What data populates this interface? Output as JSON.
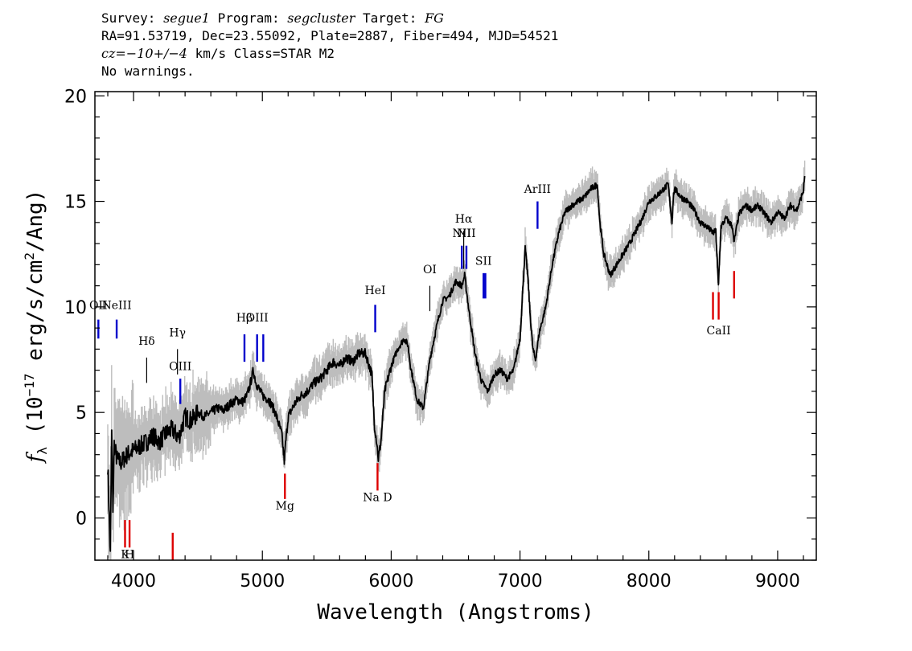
{
  "header": {
    "survey_label": "Survey:",
    "survey": "segue1",
    "program_label": "Program:",
    "program": "segcluster",
    "target_label": "Target:",
    "target": "FG",
    "line2": "RA=91.53719, Dec=23.55092, Plate=2887, Fiber=494, MJD=54521",
    "cz_label": "cz=",
    "cz_value": "−10+/−4",
    "cz_rest": " km/s Class=STAR M2",
    "line4": "No warnings."
  },
  "chart_data": {
    "type": "line",
    "xlabel": "Wavelength (Angstroms)",
    "ylabel_parts": {
      "f": "f",
      "sub": "λ",
      "pre": " (10",
      "exp1": "−17",
      "mid": " erg/s/cm",
      "exp2": "2",
      "post": "/Ang)"
    },
    "xlim": [
      3700,
      9300
    ],
    "ylim": [
      -2,
      20.2
    ],
    "xticks": [
      4000,
      5000,
      6000,
      7000,
      8000,
      9000
    ],
    "yticks": [
      0,
      5,
      10,
      15,
      20
    ],
    "grid": false,
    "colors": {
      "flux": "#000000",
      "error": "#bdbdbd",
      "emission": "#0000cc",
      "absorption": "#dd0000",
      "galaxy": "#000000"
    },
    "series": [
      {
        "x": [
          3800,
          3820,
          3830,
          3840,
          3850,
          3870,
          3900,
          3950,
          4000,
          4050,
          4100,
          4150,
          4200,
          4250,
          4300,
          4350,
          4400,
          4450,
          4500,
          4550,
          4600,
          4650,
          4700,
          4750,
          4800,
          4850,
          4880,
          4900,
          4930,
          4950,
          5000,
          5050,
          5100,
          5150,
          5170,
          5180,
          5200,
          5250,
          5300,
          5350,
          5400,
          5450,
          5500,
          5550,
          5600,
          5650,
          5700,
          5750,
          5800,
          5850,
          5870,
          5890,
          5900,
          5920,
          5950,
          6000,
          6050,
          6100,
          6130,
          6150,
          6200,
          6250,
          6300,
          6350,
          6400,
          6450,
          6500,
          6550,
          6570,
          6600,
          6650,
          6700,
          6730,
          6750,
          6800,
          6850,
          6900,
          6950,
          7000,
          7040,
          7060,
          7080,
          7100,
          7120,
          7150,
          7200,
          7250,
          7300,
          7350,
          7400,
          7450,
          7500,
          7550,
          7600,
          7620,
          7650,
          7700,
          7750,
          7800,
          7850,
          7900,
          7950,
          8000,
          8050,
          8100,
          8150,
          8180,
          8190,
          8200,
          8250,
          8300,
          8350,
          8400,
          8450,
          8500,
          8520,
          8540,
          8560,
          8600,
          8650,
          8660,
          8700,
          8750,
          8800,
          8850,
          8900,
          8950,
          9000,
          9050,
          9100,
          9150,
          9200,
          9210
        ],
        "y": [
          2.5,
          -1.8,
          4.0,
          0.5,
          3.5,
          2.8,
          2.6,
          3.0,
          3.2,
          3.4,
          3.6,
          3.9,
          3.6,
          4.0,
          4.2,
          3.8,
          4.8,
          4.6,
          5.0,
          4.8,
          5.0,
          5.2,
          5.1,
          5.4,
          5.6,
          5.5,
          5.8,
          6.2,
          7.0,
          6.4,
          5.8,
          5.6,
          5.0,
          4.0,
          2.7,
          3.5,
          4.8,
          5.4,
          5.8,
          6.0,
          6.4,
          6.6,
          7.0,
          7.4,
          7.2,
          7.6,
          7.4,
          7.8,
          7.8,
          6.8,
          4.4,
          3.5,
          2.8,
          3.6,
          6.0,
          7.2,
          8.0,
          8.5,
          8.2,
          7.2,
          5.6,
          5.2,
          7.5,
          9.0,
          10.3,
          10.5,
          11.2,
          11.0,
          11.5,
          10.0,
          7.8,
          6.5,
          6.2,
          6.0,
          6.8,
          7.0,
          6.6,
          7.0,
          8.5,
          12.8,
          11.5,
          9.5,
          8.0,
          7.5,
          8.8,
          10.0,
          12.0,
          13.5,
          14.5,
          14.8,
          15.0,
          15.2,
          15.6,
          15.8,
          14.0,
          12.5,
          11.5,
          12.0,
          12.5,
          13.0,
          13.6,
          14.2,
          15.0,
          15.2,
          15.5,
          15.8,
          14.0,
          15.2,
          15.6,
          15.2,
          15.0,
          14.6,
          14.0,
          13.8,
          13.5,
          13.6,
          11.0,
          13.8,
          14.2,
          13.8,
          13.0,
          14.4,
          14.8,
          14.6,
          14.8,
          14.4,
          14.0,
          14.5,
          14.2,
          14.8,
          14.6,
          15.5,
          16.2
        ]
      }
    ],
    "lines": [
      {
        "label": "OII",
        "x": 3727,
        "kind": "emission",
        "y": [
          8.5,
          9.4
        ],
        "label_y": 9.9
      },
      {
        "label": "NeIII",
        "x": 3869,
        "kind": "emission",
        "y": [
          8.5,
          9.4
        ],
        "label_y": 9.9
      },
      {
        "label": "Hδ",
        "x": 4102,
        "kind": "galaxy",
        "y": [
          6.4,
          7.6
        ],
        "label_y": 8.2
      },
      {
        "label": "Hγ",
        "x": 4341,
        "kind": "galaxy",
        "y": [
          6.8,
          8.0
        ],
        "label_y": 8.6
      },
      {
        "label": "OIII",
        "x": 4363,
        "kind": "emission",
        "y": [
          5.4,
          6.6
        ],
        "label_y": 7.0
      },
      {
        "label": "Hβ",
        "x": 4861,
        "kind": "emission",
        "y": [
          7.4,
          8.7
        ],
        "label_y": 9.3
      },
      {
        "label": "OIII",
        "x": 4959,
        "kind": "emission",
        "y": [
          7.4,
          8.7
        ],
        "label_y": 9.3
      },
      {
        "label": "",
        "x": 5007,
        "kind": "emission",
        "y": [
          7.4,
          8.7
        ]
      },
      {
        "label": "HeI",
        "x": 5876,
        "kind": "emission",
        "y": [
          8.8,
          10.1
        ],
        "label_y": 10.6
      },
      {
        "label": "OI",
        "x": 6300,
        "kind": "galaxy",
        "y": [
          9.8,
          11.0
        ],
        "label_y": 11.6
      },
      {
        "label": "NII",
        "x": 6548,
        "kind": "emission",
        "y": [
          11.8,
          12.9
        ],
        "label_y": 13.3
      },
      {
        "label": "Hα",
        "x": 6563,
        "kind": "galaxy",
        "y": [
          11.8,
          13.6
        ],
        "label_y": 14.0
      },
      {
        "label": "NII",
        "x": 6584,
        "kind": "emission",
        "y": [
          11.8,
          12.9
        ],
        "label_y": 13.3
      },
      {
        "label": "SII",
        "x": 6717,
        "kind": "emission",
        "y": [
          10.4,
          11.6
        ],
        "label_y": 12.0
      },
      {
        "label": "",
        "x": 6731,
        "kind": "emission",
        "y": [
          10.4,
          11.6
        ]
      },
      {
        "label": "ArIII",
        "x": 7136,
        "kind": "emission",
        "y": [
          13.7,
          15.0
        ],
        "label_y": 15.4
      },
      {
        "label": "K",
        "x": 3934,
        "kind": "absorption",
        "y": [
          -1.4,
          -0.1
        ],
        "label_y": -1.9
      },
      {
        "label": "H",
        "x": 3969,
        "kind": "absorption",
        "y": [
          -1.4,
          -0.1
        ],
        "label_y": -1.9
      },
      {
        "label": "",
        "x": 4304,
        "kind": "absorption",
        "y": [
          -2.0,
          -0.7
        ]
      },
      {
        "label": "Mg",
        "x": 5175,
        "kind": "absorption",
        "y": [
          0.9,
          2.1
        ],
        "label_y": 0.4
      },
      {
        "label": "Na D",
        "x": 5894,
        "kind": "absorption",
        "y": [
          1.3,
          2.6
        ],
        "label_y": 0.8
      },
      {
        "label": "",
        "x": 8498,
        "kind": "absorption",
        "y": [
          9.4,
          10.7
        ]
      },
      {
        "label": "CaII",
        "x": 8542,
        "kind": "absorption",
        "y": [
          9.4,
          10.7
        ],
        "label_y": 8.7
      },
      {
        "label": "",
        "x": 8662,
        "kind": "absorption",
        "y": [
          10.4,
          11.7
        ]
      }
    ]
  }
}
